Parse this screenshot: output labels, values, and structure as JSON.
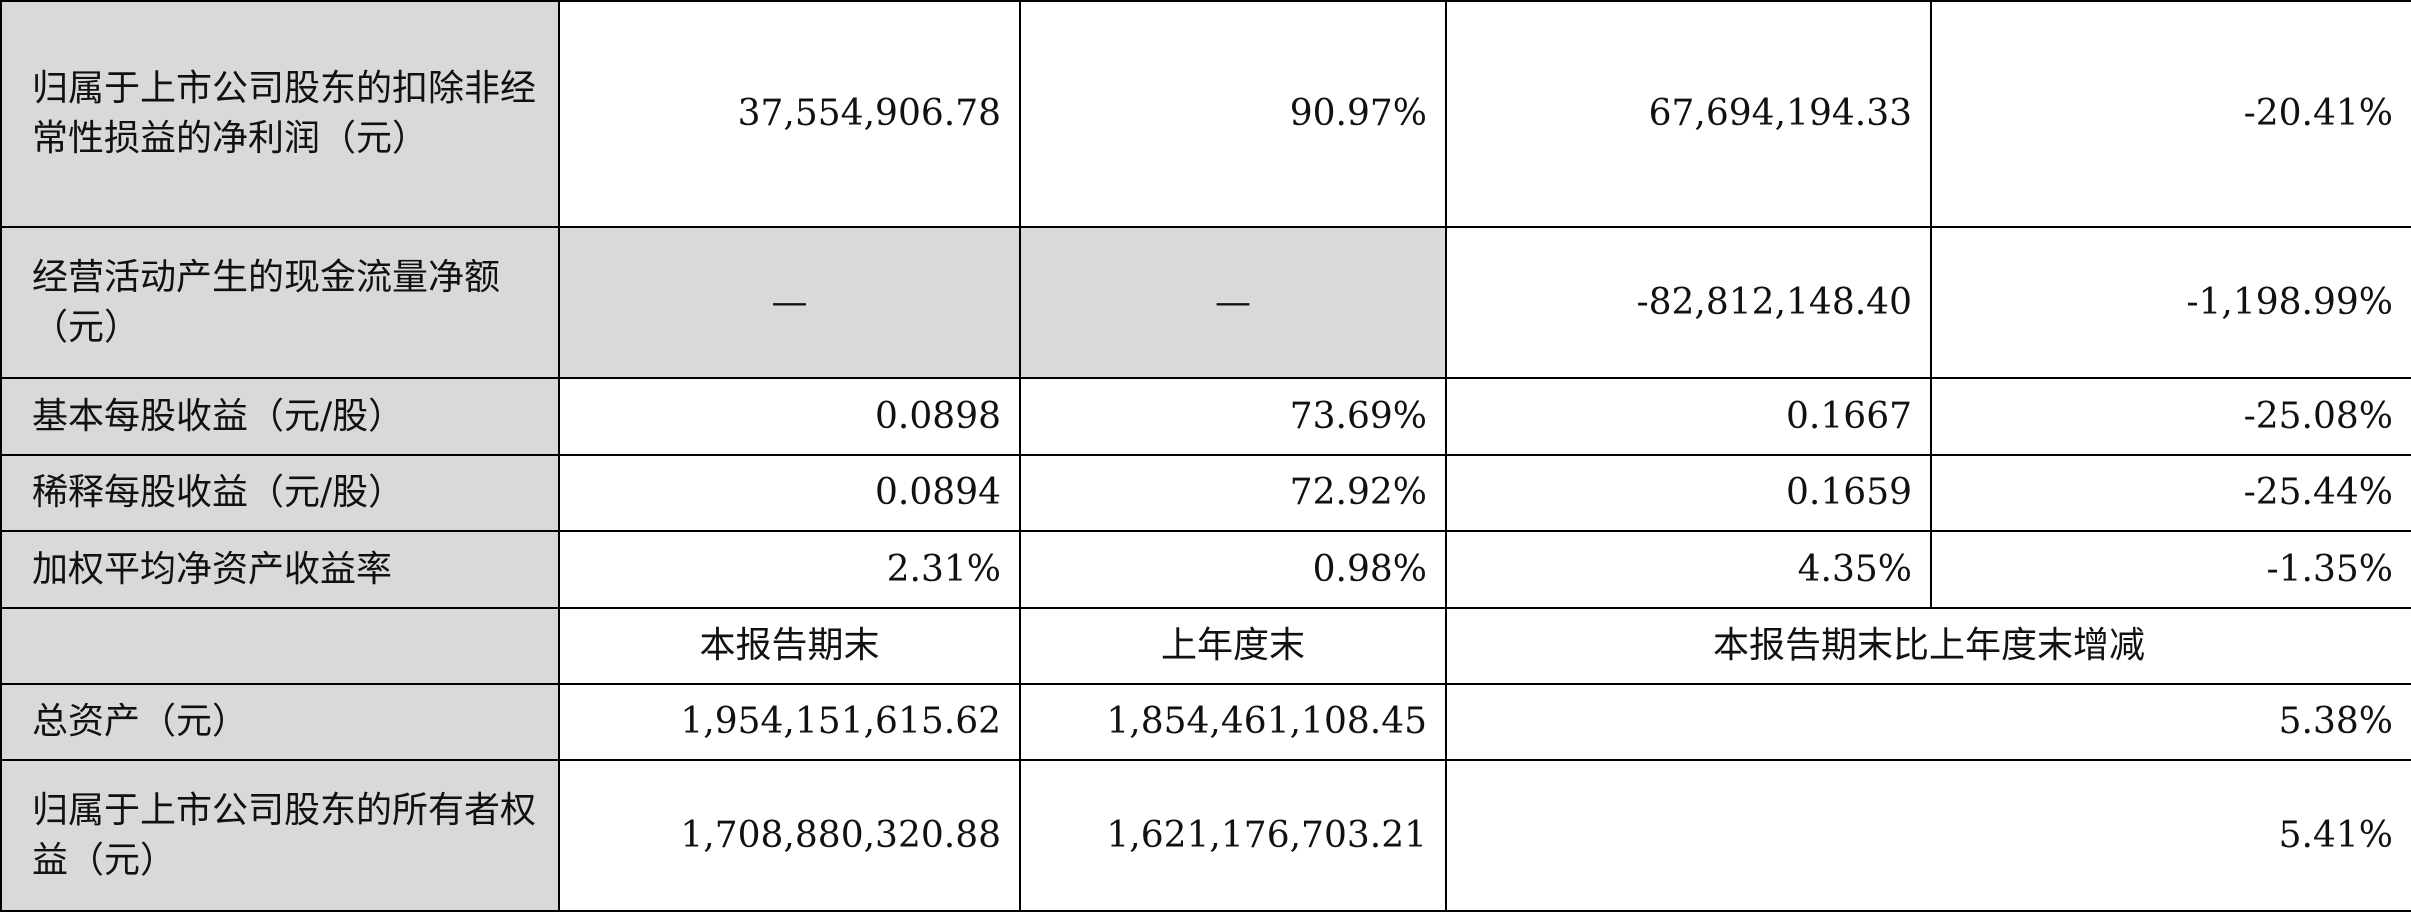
{
  "table": {
    "rows": [
      [
        "归属于上市公司股东的扣除非经常性损益的净利润（元）",
        "37,554,906.78",
        "90.97%",
        "67,694,194.33",
        "-20.41%"
      ],
      [
        "经营活动产生的现金流量净额（元）",
        "—",
        "—",
        "-82,812,148.40",
        "-1,198.99%"
      ],
      [
        "基本每股收益（元/股）",
        "0.0898",
        "73.69%",
        "0.1667",
        "-25.08%"
      ],
      [
        "稀释每股收益（元/股）",
        "0.0894",
        "72.92%",
        "0.1659",
        "-25.44%"
      ],
      [
        "加权平均净资产收益率",
        "2.31%",
        "0.98%",
        "4.35%",
        "-1.35%"
      ]
    ],
    "header2": [
      "本报告期末",
      "上年度末",
      "本报告期末比上年度末增减"
    ],
    "rows2": [
      [
        "总资产（元）",
        "1,954,151,615.62",
        "1,854,461,108.45",
        "5.38%"
      ],
      [
        "归属于上市公司股东的所有者权益（元）",
        "1,708,880,320.88",
        "1,621,176,703.21",
        "5.41%"
      ]
    ]
  }
}
